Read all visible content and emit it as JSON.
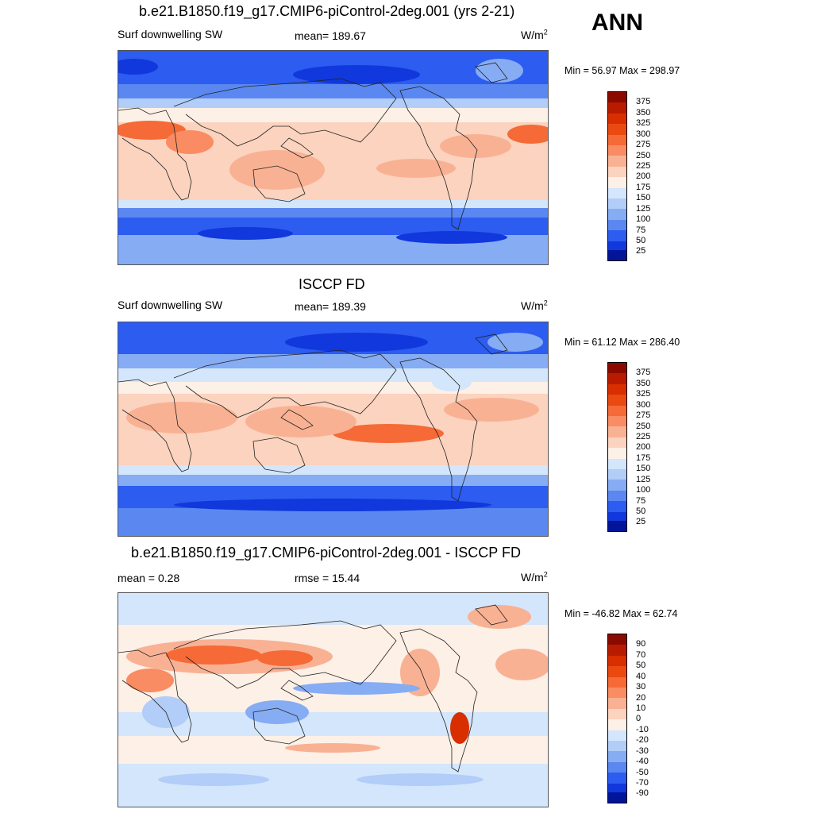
{
  "season": "ANN",
  "panels": [
    {
      "title": "b.e21.B1850.f19_g17.CMIP6-piControl-2deg.001 (yrs 2-21)",
      "left_label": "Surf downwelling SW",
      "center_label": "mean= 189.67",
      "units_base": "W/m",
      "units_exp": "2",
      "minmax": "Min =  56.97 Max = 298.97",
      "map_label": "Model annual mean surface downwelling shortwave map"
    },
    {
      "title": "ISCCP FD",
      "left_label": "Surf downwelling SW",
      "center_label": "mean= 189.39",
      "units_base": "W/m",
      "units_exp": "2",
      "minmax": "Min =  61.12 Max = 286.40",
      "map_label": "Observed annual mean surface downwelling shortwave map"
    },
    {
      "title": "b.e21.B1850.f19_g17.CMIP6-piControl-2deg.001 - ISCCP FD",
      "left_label": "mean =   0.28",
      "center_label": "rmse =  15.44",
      "units_base": "W/m",
      "units_exp": "2",
      "minmax": "Min = -46.82 Max =  62.74",
      "map_label": "Difference map model minus observations"
    }
  ],
  "colorbars": {
    "absolute": {
      "labels": [
        "375",
        "350",
        "325",
        "300",
        "275",
        "250",
        "225",
        "200",
        "175",
        "150",
        "125",
        "100",
        "75",
        "50",
        "25"
      ],
      "colors": [
        "#8b0a00",
        "#b81c00",
        "#d92e00",
        "#ea4a10",
        "#f56a36",
        "#f98c62",
        "#f9b194",
        "#fbd3be",
        "#fdf0e6",
        "#d4e6fb",
        "#b1cdf8",
        "#86acf4",
        "#5a88f0",
        "#2c5cf0",
        "#1138dc",
        "#02149a"
      ]
    },
    "difference": {
      "labels": [
        "90",
        "70",
        "50",
        "40",
        "30",
        "20",
        "10",
        "0",
        "-10",
        "-20",
        "-30",
        "-40",
        "-50",
        "-70",
        "-90"
      ],
      "colors": [
        "#8b0a00",
        "#b81c00",
        "#d92e00",
        "#ea4a10",
        "#f56a36",
        "#f98c62",
        "#f9b194",
        "#fbd3be",
        "#fdf0e6",
        "#d4e6fb",
        "#b1cdf8",
        "#86acf4",
        "#5a88f0",
        "#2c5cf0",
        "#1138dc",
        "#02149a"
      ]
    }
  }
}
